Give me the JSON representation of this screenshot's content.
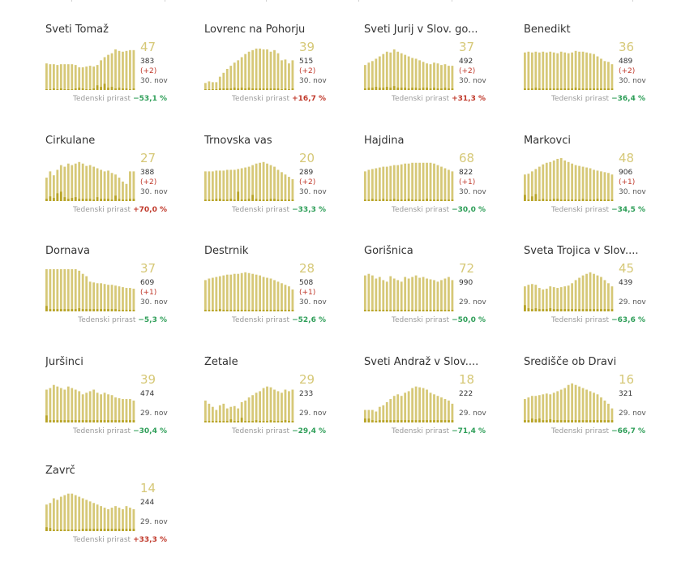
{
  "colors": {
    "accent": "#d6c877",
    "bar": "#d6c877",
    "bar_new": "#b8a428",
    "negative": "#2e9e58",
    "positive": "#c0392b"
  },
  "growth_label": "Tedenski prirast",
  "chart_data": [
    {
      "type": "bar",
      "title": "Sveti Tomaž",
      "big": "47",
      "total": "383",
      "delta": "(+2)",
      "date": "30. nov",
      "growth": "−53,1 %",
      "growth_sign": "neg",
      "series": [
        {
          "values": [
            34,
            33,
            33,
            32,
            33,
            33,
            33,
            33,
            32,
            29,
            29,
            30,
            31,
            30,
            32,
            38,
            42,
            45,
            47,
            52,
            50,
            49,
            50,
            51,
            51
          ]
        },
        {
          "values": [
            1,
            1,
            2,
            1,
            2,
            1,
            1,
            1,
            2,
            3,
            2,
            1,
            1,
            2,
            6,
            4,
            8,
            3,
            4,
            2,
            3,
            2,
            2,
            1,
            2
          ]
        }
      ]
    },
    {
      "type": "bar",
      "title": "Lovrenc na Pohorju",
      "big": "39",
      "total": "515",
      "delta": "(+2)",
      "date": "30. nov",
      "growth": "+16,7 %",
      "growth_sign": "pos",
      "series": [
        {
          "values": [
            9,
            11,
            10,
            10,
            17,
            22,
            27,
            31,
            35,
            38,
            42,
            46,
            49,
            51,
            53,
            53,
            52,
            52,
            49,
            51,
            47,
            38,
            39,
            34,
            38
          ]
        },
        {
          "values": [
            1,
            1,
            1,
            1,
            2,
            2,
            2,
            2,
            3,
            2,
            3,
            2,
            3,
            2,
            2,
            2,
            2,
            2,
            2,
            2,
            2,
            1,
            2,
            1,
            2
          ]
        }
      ]
    },
    {
      "type": "bar",
      "title": "Sveti Jurij v Slov. go...",
      "big": "37",
      "total": "492",
      "delta": "(+2)",
      "date": "30. nov",
      "growth": "+31,3 %",
      "growth_sign": "pos",
      "series": [
        {
          "values": [
            32,
            35,
            37,
            40,
            43,
            46,
            49,
            48,
            52,
            49,
            47,
            45,
            43,
            41,
            40,
            38,
            36,
            34,
            33,
            35,
            34,
            32,
            33,
            31,
            31
          ]
        },
        {
          "values": [
            2,
            3,
            3,
            4,
            3,
            3,
            4,
            3,
            5,
            3,
            3,
            3,
            2,
            3,
            3,
            2,
            3,
            3,
            2,
            3,
            2,
            2,
            3,
            2,
            2
          ]
        }
      ]
    },
    {
      "type": "bar",
      "title": "Benedikt",
      "big": "36",
      "total": "489",
      "delta": "(+2)",
      "date": "30. nov",
      "growth": "−36,4 %",
      "growth_sign": "neg",
      "series": [
        {
          "values": [
            48,
            49,
            48,
            49,
            48,
            49,
            48,
            49,
            48,
            47,
            49,
            48,
            47,
            48,
            50,
            49,
            49,
            48,
            47,
            46,
            43,
            40,
            37,
            36,
            33
          ]
        },
        {
          "values": [
            2,
            2,
            2,
            3,
            2,
            2,
            2,
            2,
            2,
            2,
            2,
            2,
            2,
            2,
            3,
            2,
            2,
            2,
            2,
            2,
            2,
            2,
            2,
            2,
            2
          ]
        }
      ]
    },
    {
      "type": "bar",
      "title": "Cirkulane",
      "big": "27",
      "total": "388",
      "delta": "(+2)",
      "date": "30. nov",
      "growth": "+70,0 %",
      "growth_sign": "pos",
      "series": [
        {
          "values": [
            30,
            38,
            33,
            40,
            46,
            44,
            48,
            46,
            48,
            50,
            48,
            45,
            46,
            44,
            42,
            40,
            38,
            39,
            36,
            34,
            30,
            25,
            22,
            38,
            38
          ]
        },
        {
          "values": [
            3,
            6,
            4,
            10,
            12,
            5,
            3,
            4,
            5,
            3,
            3,
            3,
            3,
            2,
            5,
            3,
            3,
            3,
            2,
            7,
            3,
            2,
            2,
            3,
            3
          ]
        }
      ]
    },
    {
      "type": "bar",
      "title": "Trnovska vas",
      "big": "20",
      "total": "289",
      "delta": "(+2)",
      "date": "30. nov",
      "growth": "−33,3 %",
      "growth_sign": "neg",
      "series": [
        {
          "values": [
            38,
            38,
            38,
            39,
            39,
            39,
            40,
            40,
            40,
            41,
            42,
            43,
            44,
            46,
            48,
            49,
            50,
            48,
            46,
            44,
            40,
            37,
            34,
            31,
            28
          ]
        },
        {
          "values": [
            2,
            2,
            2,
            3,
            3,
            2,
            2,
            3,
            2,
            12,
            2,
            2,
            3,
            8,
            3,
            2,
            2,
            2,
            3,
            3,
            2,
            2,
            2,
            2,
            2
          ]
        }
      ]
    },
    {
      "type": "bar",
      "title": "Hajdina",
      "big": "68",
      "total": "822",
      "delta": "(+1)",
      "date": "30. nov",
      "growth": "−30,0 %",
      "growth_sign": "neg",
      "series": [
        {
          "values": [
            38,
            40,
            41,
            42,
            43,
            44,
            44,
            45,
            46,
            46,
            47,
            48,
            48,
            49,
            49,
            49,
            49,
            49,
            49,
            48,
            46,
            44,
            42,
            40,
            38
          ]
        },
        {
          "values": [
            2,
            2,
            3,
            2,
            2,
            3,
            2,
            2,
            3,
            2,
            2,
            2,
            3,
            2,
            2,
            2,
            2,
            3,
            2,
            2,
            2,
            2,
            2,
            2,
            2
          ]
        }
      ]
    },
    {
      "type": "bar",
      "title": "Markovci",
      "big": "48",
      "total": "906",
      "delta": "(+1)",
      "date": "30. nov",
      "growth": "−34,5 %",
      "growth_sign": "neg",
      "series": [
        {
          "values": [
            34,
            35,
            38,
            41,
            44,
            47,
            49,
            50,
            52,
            54,
            55,
            52,
            50,
            48,
            46,
            45,
            44,
            43,
            42,
            40,
            39,
            38,
            37,
            36,
            34
          ]
        },
        {
          "values": [
            8,
            2,
            6,
            9,
            2,
            3,
            2,
            2,
            3,
            3,
            2,
            2,
            2,
            2,
            2,
            2,
            3,
            2,
            2,
            2,
            3,
            2,
            2,
            2,
            2
          ]
        }
      ]
    },
    {
      "type": "bar",
      "title": "Dornava",
      "big": "37",
      "total": "609",
      "delta": "(+1)",
      "date": "30. nov",
      "growth": "−5,3 %",
      "growth_sign": "neg",
      "series": [
        {
          "values": [
            54,
            54,
            54,
            54,
            54,
            54,
            54,
            54,
            54,
            52,
            48,
            45,
            38,
            37,
            36,
            36,
            35,
            34,
            34,
            33,
            32,
            31,
            30,
            30,
            29
          ]
        },
        {
          "values": [
            7,
            3,
            3,
            3,
            3,
            3,
            3,
            3,
            3,
            4,
            3,
            3,
            3,
            3,
            3,
            3,
            3,
            3,
            3,
            3,
            2,
            2,
            2,
            2,
            2
          ]
        }
      ]
    },
    {
      "type": "bar",
      "title": "Destrnik",
      "big": "28",
      "total": "508",
      "delta": "(+1)",
      "date": "30. nov",
      "growth": "−52,6 %",
      "growth_sign": "neg",
      "series": [
        {
          "values": [
            40,
            42,
            43,
            44,
            45,
            46,
            47,
            47,
            48,
            48,
            49,
            50,
            49,
            48,
            47,
            46,
            44,
            43,
            42,
            40,
            38,
            36,
            34,
            32,
            28
          ]
        },
        {
          "values": [
            2,
            2,
            2,
            2,
            3,
            2,
            2,
            2,
            2,
            2,
            2,
            2,
            2,
            2,
            2,
            2,
            2,
            2,
            2,
            2,
            2,
            2,
            2,
            2,
            2
          ]
        }
      ]
    },
    {
      "type": "bar",
      "title": "Gorišnica",
      "big": "72",
      "total": "990",
      "delta": "",
      "date": "29. nov",
      "growth": "−50,0 %",
      "growth_sign": "neg",
      "series": [
        {
          "values": [
            46,
            48,
            46,
            42,
            44,
            40,
            38,
            45,
            42,
            40,
            38,
            44,
            42,
            44,
            46,
            43,
            44,
            42,
            41,
            40,
            38,
            40,
            42,
            44,
            40
          ]
        },
        {
          "values": [
            2,
            2,
            2,
            2,
            2,
            2,
            2,
            2,
            2,
            2,
            2,
            2,
            2,
            2,
            2,
            2,
            2,
            2,
            2,
            2,
            2,
            2,
            2,
            2,
            2
          ]
        }
      ]
    },
    {
      "type": "bar",
      "title": "Sveta Trojica v Slov....",
      "big": "45",
      "total": "439",
      "delta": "",
      "date": "29. nov",
      "growth": "−63,6 %",
      "growth_sign": "neg",
      "series": [
        {
          "values": [
            32,
            34,
            35,
            34,
            30,
            28,
            29,
            32,
            31,
            30,
            31,
            32,
            33,
            36,
            40,
            43,
            46,
            48,
            50,
            48,
            46,
            44,
            40,
            36,
            32
          ]
        },
        {
          "values": [
            8,
            4,
            3,
            4,
            3,
            3,
            3,
            4,
            3,
            3,
            3,
            3,
            3,
            3,
            3,
            3,
            3,
            3,
            3,
            3,
            3,
            3,
            3,
            3,
            3
          ]
        }
      ]
    },
    {
      "type": "bar",
      "title": "Juršinci",
      "big": "39",
      "total": "474",
      "delta": "",
      "date": "29. nov",
      "growth": "−30,4 %",
      "growth_sign": "neg",
      "series": [
        {
          "values": [
            42,
            44,
            48,
            46,
            44,
            42,
            46,
            44,
            42,
            40,
            36,
            38,
            40,
            42,
            38,
            36,
            38,
            36,
            35,
            32,
            31,
            30,
            30,
            30,
            28
          ]
        },
        {
          "values": [
            9,
            3,
            3,
            3,
            3,
            3,
            3,
            3,
            3,
            3,
            3,
            3,
            3,
            3,
            3,
            3,
            3,
            3,
            3,
            3,
            3,
            3,
            3,
            3,
            3
          ]
        }
      ]
    },
    {
      "type": "bar",
      "title": "Žetale",
      "big": "29",
      "total": "233",
      "delta": "",
      "date": "29. nov",
      "growth": "−29,4 %",
      "growth_sign": "neg",
      "series": [
        {
          "values": [
            28,
            24,
            20,
            16,
            22,
            24,
            18,
            20,
            21,
            18,
            26,
            28,
            32,
            35,
            38,
            40,
            44,
            46,
            45,
            42,
            40,
            38,
            42,
            40,
            42
          ]
        },
        {
          "values": [
            2,
            2,
            2,
            2,
            2,
            2,
            2,
            4,
            2,
            2,
            6,
            2,
            2,
            2,
            3,
            2,
            2,
            2,
            3,
            2,
            2,
            2,
            3,
            2,
            2
          ]
        }
      ]
    },
    {
      "type": "bar",
      "title": "Sveti Andraž v Slov....",
      "big": "18",
      "total": "222",
      "delta": "",
      "date": "29. nov",
      "growth": "−71,4 %",
      "growth_sign": "neg",
      "series": [
        {
          "values": [
            16,
            16,
            16,
            14,
            20,
            22,
            26,
            30,
            34,
            36,
            34,
            38,
            40,
            44,
            46,
            45,
            44,
            42,
            38,
            36,
            34,
            32,
            30,
            28,
            24
          ]
        },
        {
          "values": [
            5,
            5,
            3,
            2,
            3,
            3,
            3,
            3,
            3,
            3,
            3,
            3,
            3,
            3,
            3,
            3,
            3,
            3,
            3,
            3,
            3,
            3,
            3,
            3,
            3
          ]
        }
      ]
    },
    {
      "type": "bar",
      "title": "Središče ob Dravi",
      "big": "16",
      "total": "321",
      "delta": "",
      "date": "29. nov",
      "growth": "−66,7 %",
      "growth_sign": "neg",
      "series": [
        {
          "values": [
            30,
            32,
            34,
            34,
            35,
            36,
            37,
            36,
            38,
            40,
            42,
            44,
            48,
            50,
            48,
            46,
            44,
            42,
            40,
            38,
            36,
            32,
            28,
            24,
            18
          ]
        },
        {
          "values": [
            3,
            3,
            5,
            4,
            5,
            3,
            3,
            4,
            3,
            3,
            3,
            3,
            3,
            3,
            3,
            3,
            3,
            3,
            3,
            3,
            3,
            3,
            3,
            3,
            3
          ]
        }
      ]
    },
    {
      "type": "bar",
      "title": "Zavrč",
      "big": "14",
      "total": "244",
      "delta": "",
      "date": "29. nov",
      "growth": "+33,3 %",
      "growth_sign": "pos",
      "series": [
        {
          "values": [
            34,
            36,
            42,
            40,
            44,
            46,
            48,
            48,
            46,
            44,
            42,
            40,
            38,
            36,
            34,
            32,
            30,
            28,
            30,
            32,
            30,
            28,
            32,
            30,
            28
          ]
        },
        {
          "values": [
            5,
            4,
            2,
            2,
            2,
            2,
            2,
            2,
            2,
            2,
            3,
            3,
            3,
            3,
            3,
            3,
            3,
            3,
            3,
            3,
            3,
            3,
            3,
            3,
            3
          ]
        }
      ]
    }
  ]
}
